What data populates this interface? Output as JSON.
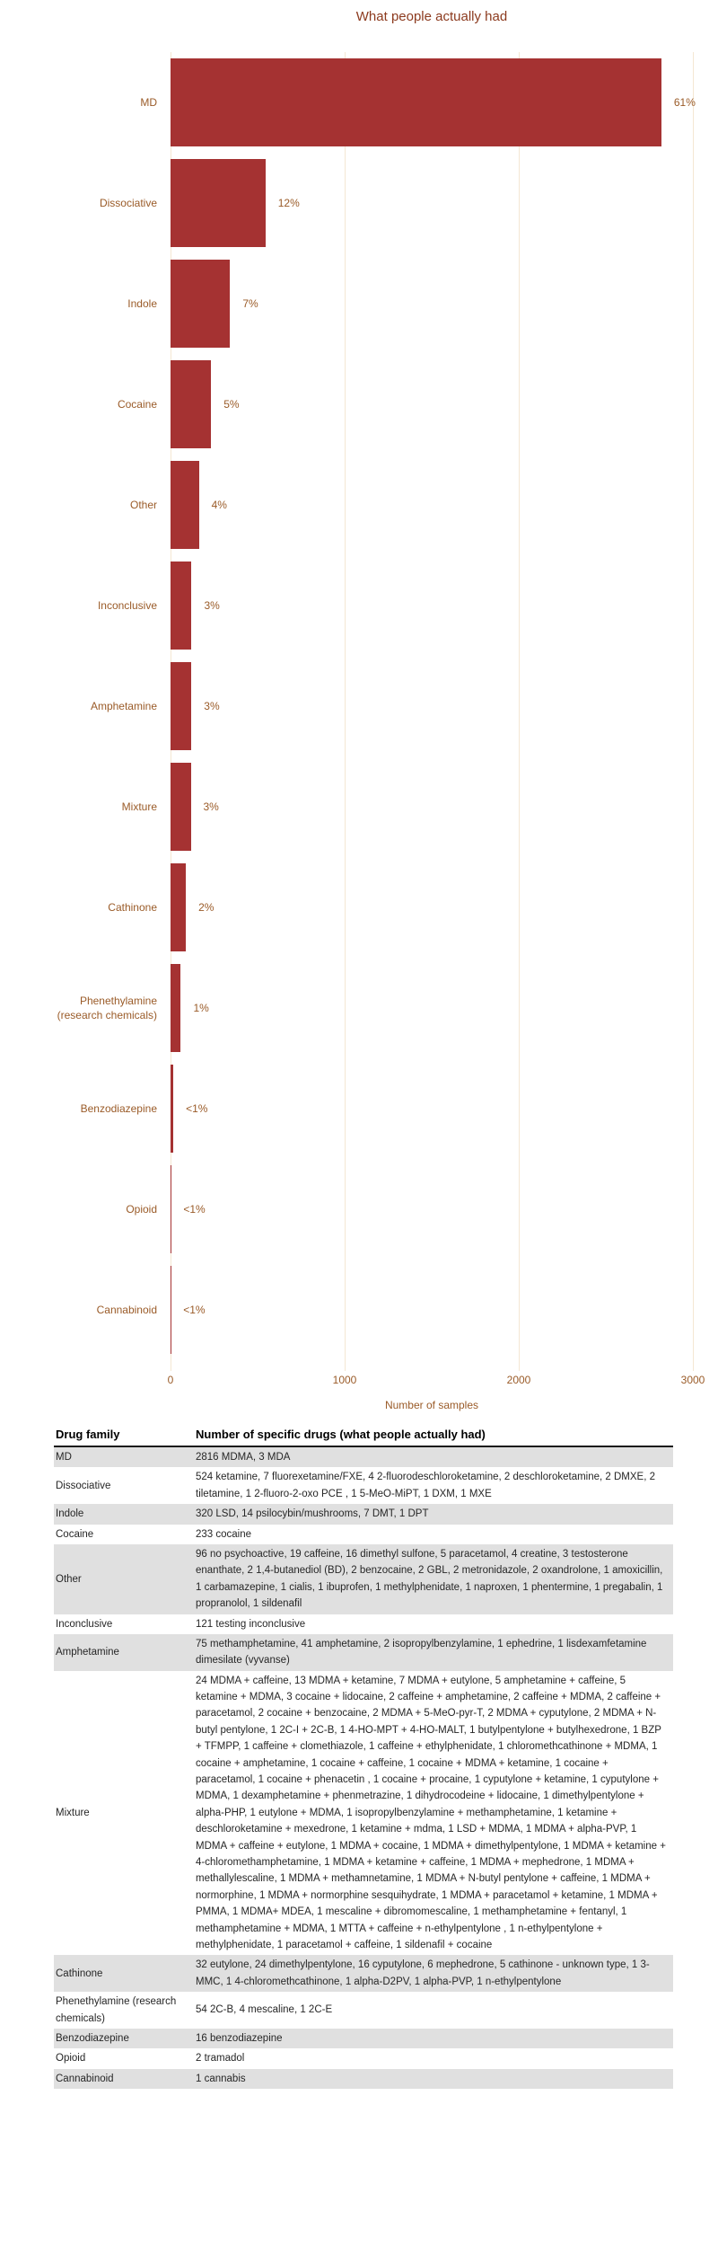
{
  "chart_data": {
    "type": "bar",
    "orientation": "horizontal",
    "title": "What people actually had",
    "xlabel": "Number of samples",
    "xlim": [
      0,
      3000
    ],
    "xticks": [
      0,
      1000,
      2000,
      3000
    ],
    "grid": "vertical-lines-only",
    "categories": [
      "MD",
      "Dissociative",
      "Indole",
      "Cocaine",
      "Other",
      "Inconclusive",
      "Amphetamine",
      "Mixture",
      "Cathinone",
      "Phenethylamine (research chemicals)",
      "Benzodiazepine",
      "Opioid",
      "Cannabinoid"
    ],
    "percent_labels": [
      "61%",
      "12%",
      "7%",
      "5%",
      "4%",
      "3%",
      "3%",
      "3%",
      "2%",
      "1%",
      "<1%",
      "<1%",
      "<1%"
    ],
    "samples": [
      2819,
      545,
      342,
      233,
      163,
      121,
      120,
      116,
      88,
      59,
      16,
      2,
      1
    ],
    "colors": {
      "bar": "#A53232",
      "label_text": "#9A5B28",
      "title_text": "#8C3A1E",
      "gridline": "#F4E7D3",
      "row_shade": "#E0E0E0",
      "header_border": "#1A1A1A"
    }
  },
  "table": {
    "headers": [
      "Drug family",
      "Number of specific drugs (what people actually had)"
    ],
    "rows": [
      {
        "family": "MD",
        "drugs": "2816 MDMA, 3 MDA"
      },
      {
        "family": "Dissociative",
        "drugs": "524 ketamine, 7 fluorexetamine/FXE, 4 2-fluorodeschloroketamine, 2 deschloroketamine, 2 DMXE, 2 tiletamine, 1 2-fluoro-2-oxo PCE , 1 5-MeO-MiPT, 1 DXM, 1 MXE"
      },
      {
        "family": "Indole",
        "drugs": "320 LSD, 14 psilocybin/mushrooms, 7 DMT, 1 DPT"
      },
      {
        "family": "Cocaine",
        "drugs": "233 cocaine"
      },
      {
        "family": "Other",
        "drugs": "96 no psychoactive, 19 caffeine, 16 dimethyl sulfone, 5 paracetamol, 4 creatine, 3 testosterone enanthate, 2 1,4-butanediol (BD), 2 benzocaine, 2 GBL, 2 metronidazole, 2 oxandrolone, 1 amoxicillin, 1 carbamazepine, 1 cialis, 1 ibuprofen, 1 methylphenidate, 1 naproxen, 1 phentermine, 1 pregabalin, 1 propranolol, 1 sildenafil"
      },
      {
        "family": "Inconclusive",
        "drugs": "121 testing inconclusive"
      },
      {
        "family": "Amphetamine",
        "drugs": "75 methamphetamine, 41 amphetamine, 2 isopropylbenzylamine, 1 ephedrine, 1 lisdexamfetamine dimesilate (vyvanse)"
      },
      {
        "family": "Mixture",
        "drugs": "24 MDMA + caffeine, 13 MDMA + ketamine, 7 MDMA + eutylone, 5 amphetamine + caffeine, 5 ketamine + MDMA, 3 cocaine + lidocaine, 2 caffeine + amphetamine, 2 caffeine + MDMA, 2 caffeine + paracetamol, 2 cocaine + benzocaine, 2 MDMA + 5-MeO-pyr-T, 2 MDMA + cyputylone, 2 MDMA + N-butyl pentylone, 1 2C-I + 2C-B, 1 4-HO-MPT + 4-HO-MALT, 1 butylpentylone + butylhexedrone, 1 BZP + TFMPP, 1 caffeine + clomethiazole, 1 caffeine + ethylphenidate, 1 chloromethcathinone + MDMA, 1 cocaine + amphetamine, 1 cocaine + caffeine, 1 cocaine + MDMA + ketamine, 1 cocaine + paracetamol, 1 cocaine + phenacetin , 1 cocaine + procaine, 1 cyputylone + ketamine, 1 cyputylone + MDMA, 1 dexamphetamine + phenmetrazine, 1 dihydrocodeine + lidocaine, 1 dimethylpentylone + alpha-PHP, 1 eutylone + MDMA, 1 isopropylbenzylamine + methamphetamine, 1 ketamine + deschloroketamine + mexedrone, 1 ketamine + mdma, 1 LSD + MDMA, 1 MDMA + alpha-PVP, 1 MDMA + caffeine + eutylone, 1 MDMA + cocaine, 1 MDMA + dimethylpentylone, 1 MDMA + ketamine + 4-chloromethamphetamine, 1 MDMA + ketamine + caffeine, 1 MDMA + mephedrone, 1 MDMA + methallylescaline, 1 MDMA + methamnetamine, 1 MDMA + N-butyl pentylone + caffeine, 1 MDMA + normorphine, 1 MDMA + normorphine sesquihydrate, 1 MDMA + paracetamol + ketamine, 1 MDMA + PMMA, 1 MDMA+ MDEA, 1 mescaline + dibromomescaline, 1 methamphetamine + fentanyl, 1 methamphetamine + MDMA, 1 MTTA + caffeine + n-ethylpentylone , 1 n-ethylpentylone + methylphenidate, 1 paracetamol + caffeine, 1 sildenafil + cocaine"
      },
      {
        "family": "Cathinone",
        "drugs": "32 eutylone, 24 dimethylpentylone, 16 cyputylone, 6 mephedrone, 5 cathinone - unknown type, 1 3-MMC, 1 4-chloromethcathinone, 1 alpha-D2PV, 1 alpha-PVP, 1 n-ethylpentylone"
      },
      {
        "family": "Phenethylamine (research chemicals)",
        "drugs": "54 2C-B, 4 mescaline, 1 2C-E"
      },
      {
        "family": "Benzodiazepine",
        "drugs": "16 benzodiazepine"
      },
      {
        "family": "Opioid",
        "drugs": "2 tramadol"
      },
      {
        "family": "Cannabinoid",
        "drugs": "1 cannabis"
      }
    ]
  }
}
